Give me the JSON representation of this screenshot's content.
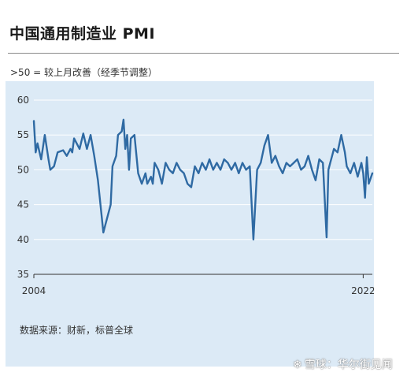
{
  "header": {
    "title": "中国通用制造业 PMI",
    "subtitle": ">50 = 较上月改善（经季节调整）"
  },
  "footer": {
    "source": "数据来源：财新，标普全球",
    "watermark_icon": "snowball-icon",
    "watermark_text": "雪球：华尔街见闻"
  },
  "colors": {
    "line": "#2f6aa3",
    "panel_background": "#dceaf6",
    "grid": "#ffffff"
  },
  "chart_data": {
    "type": "line",
    "title": "中国通用制造业 PMI",
    "subtitle": ">50 = 较上月改善（经季节调整）",
    "xlabel": "",
    "ylabel": "",
    "ylim": [
      35,
      60
    ],
    "yticks": [
      35,
      40,
      45,
      50,
      55,
      60
    ],
    "xlim": [
      2004.0,
      2022.5
    ],
    "xtick_labels": [
      "2004",
      "2022"
    ],
    "xtick_values": [
      2004.0,
      2022.0
    ],
    "grid": true,
    "series": [
      {
        "x": [
          2004.0,
          2004.1,
          2004.2,
          2004.4,
          2004.6,
          2004.8,
          2004.9,
          2005.1,
          2005.3,
          2005.6,
          2005.8,
          2006.0,
          2006.1,
          2006.2,
          2006.5,
          2006.7,
          2006.9,
          2007.1,
          2007.3,
          2007.5,
          2007.6,
          2007.8,
          2007.9,
          2008.2,
          2008.3,
          2008.5,
          2008.6,
          2008.8,
          2008.9,
          2009.0,
          2009.1,
          2009.2,
          2009.3,
          2009.5,
          2009.7,
          2009.9,
          2010.1,
          2010.2,
          2010.4,
          2010.5,
          2010.6,
          2010.8,
          2010.9,
          2011.0,
          2011.2,
          2011.4,
          2011.6,
          2011.8,
          2012.0,
          2012.2,
          2012.4,
          2012.6,
          2012.8,
          2013.0,
          2013.2,
          2013.4,
          2013.6,
          2013.8,
          2014.0,
          2014.2,
          2014.4,
          2014.6,
          2014.8,
          2015.0,
          2015.2,
          2015.4,
          2015.6,
          2015.8,
          2016.0,
          2016.2,
          2016.4,
          2016.6,
          2016.8,
          2017.0,
          2017.2,
          2017.4,
          2017.6,
          2017.8,
          2018.0,
          2018.2,
          2018.4,
          2018.6,
          2018.8,
          2019.0,
          2019.2,
          2019.4,
          2019.6,
          2019.8,
          2020.0,
          2020.1,
          2020.2,
          2020.3,
          2020.4,
          2020.6,
          2020.8,
          2021.0,
          2021.1,
          2021.3,
          2021.5,
          2021.7,
          2021.9,
          2022.0,
          2022.1,
          2022.2,
          2022.3,
          2022.5
        ],
        "y": [
          57.0,
          52.5,
          53.8,
          51.5,
          55.0,
          51.5,
          50.0,
          50.5,
          52.5,
          52.8,
          52.0,
          53.0,
          52.5,
          54.5,
          53.0,
          55.2,
          53.0,
          55.0,
          52.0,
          48.5,
          46.0,
          41.0,
          42.0,
          45.0,
          50.5,
          52.0,
          55.0,
          55.5,
          57.2,
          53.0,
          55.0,
          50.0,
          54.5,
          55.0,
          49.5,
          48.0,
          49.5,
          48.0,
          49.0,
          48.0,
          51.0,
          50.0,
          49.0,
          48.0,
          51.0,
          50.0,
          49.5,
          51.0,
          50.0,
          49.5,
          48.0,
          47.5,
          50.5,
          49.5,
          51.0,
          50.0,
          51.5,
          50.0,
          51.0,
          50.0,
          51.5,
          51.0,
          50.0,
          51.0,
          49.5,
          51.0,
          50.0,
          50.5,
          40.0,
          50.0,
          51.0,
          53.5,
          55.0,
          51.0,
          52.0,
          50.5,
          49.5,
          51.0,
          50.5,
          51.0,
          51.5,
          50.0,
          50.5,
          52.0,
          50.0,
          48.5,
          51.5,
          51.0,
          40.3,
          50.0,
          51.0,
          52.0,
          53.0,
          52.5,
          55.0,
          52.5,
          50.5,
          49.5,
          51.0,
          49.0,
          51.0,
          49.5,
          46.0,
          51.8,
          48.0,
          49.5
        ]
      }
    ]
  }
}
